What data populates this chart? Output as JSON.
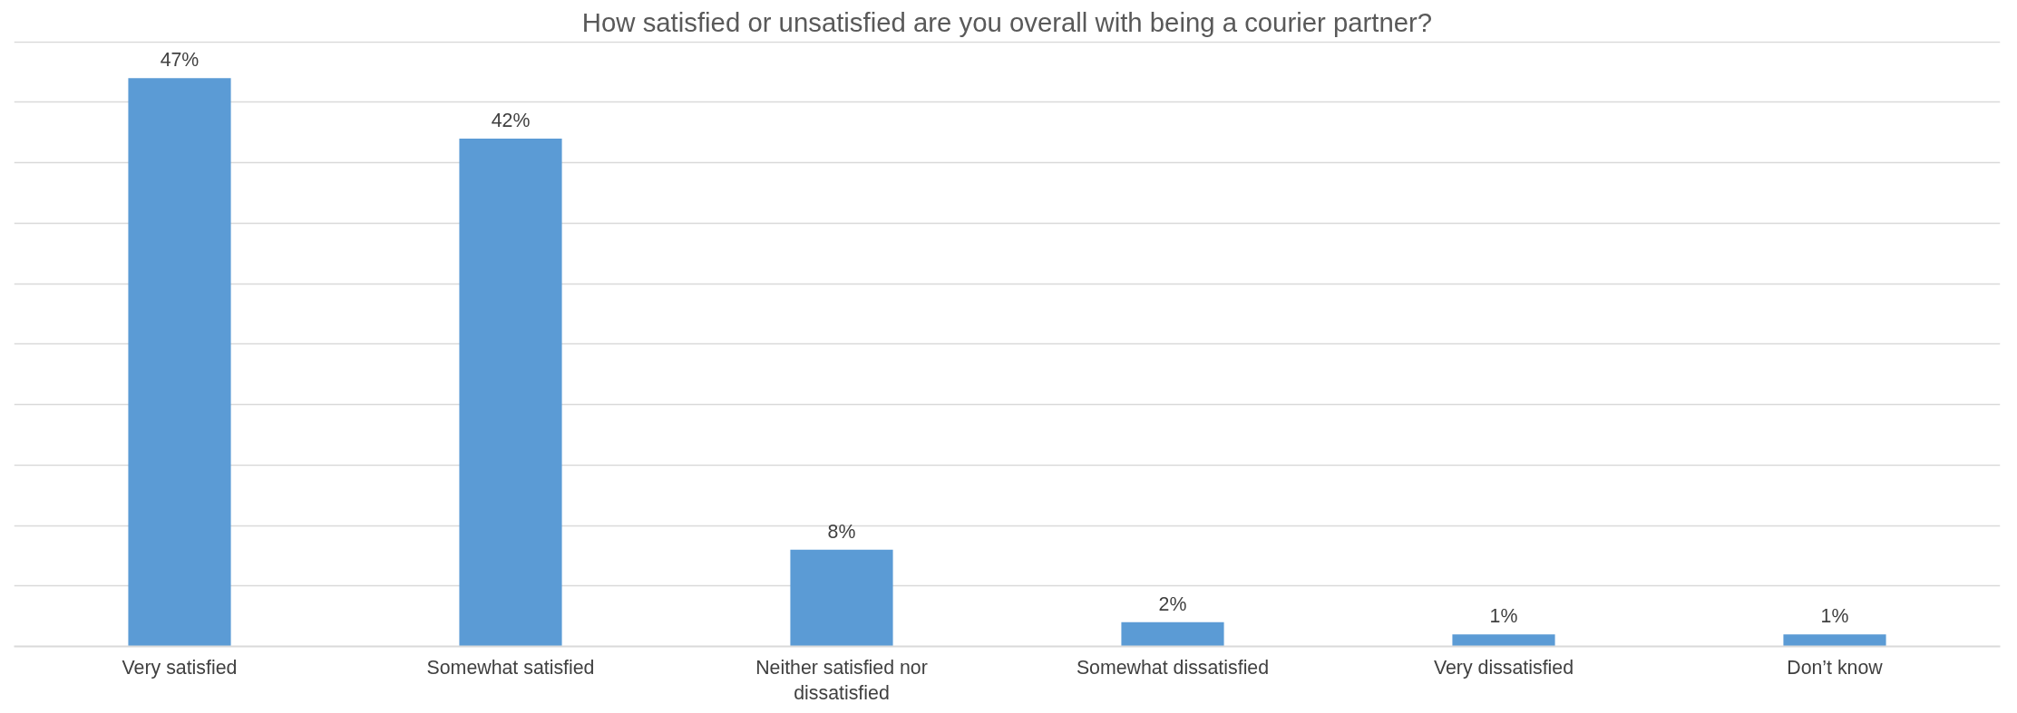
{
  "chart_data": {
    "type": "bar",
    "title": "How satisfied or unsatisfied are you overall with being a courier partner?",
    "categories": [
      "Very satisfied",
      "Somewhat satisfied",
      "Neither satisfied nor dissatisfied",
      "Somewhat dissatisfied",
      "Very dissatisfied",
      "Don’t know"
    ],
    "values": [
      47,
      42,
      8,
      2,
      1,
      1
    ],
    "color": "#5b9bd5",
    "value_labels": [
      "47%",
      "42%",
      "8%",
      "2%",
      "1%",
      "1%"
    ],
    "grid": "y",
    "tick_labels": "x"
  }
}
